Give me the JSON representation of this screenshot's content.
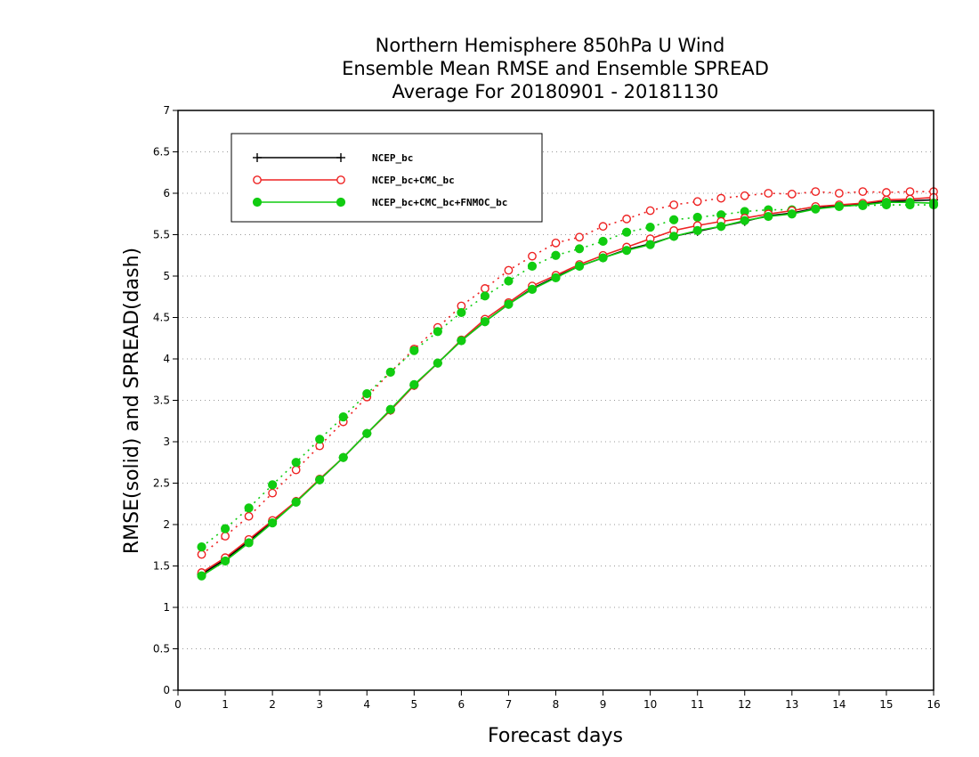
{
  "chart_data": {
    "type": "line",
    "title_lines": [
      "Northern Hemisphere 850hPa U Wind",
      "Ensemble Mean RMSE and Ensemble SPREAD",
      "Average For 20180901 - 20181130"
    ],
    "xlabel": "Forecast days",
    "ylabel": "RMSE(solid) and SPREAD(dash)",
    "xlim": [
      0,
      16
    ],
    "ylim": [
      0,
      7
    ],
    "x_ticks": [
      "0",
      "1",
      "2",
      "3",
      "4",
      "5",
      "6",
      "7",
      "8",
      "9",
      "10",
      "11",
      "12",
      "13",
      "14",
      "15",
      "16"
    ],
    "y_ticks": [
      "0",
      "0.5",
      "1",
      "1.5",
      "2",
      "2.5",
      "3",
      "3.5",
      "4",
      "4.5",
      "5",
      "5.5",
      "6",
      "6.5",
      "7"
    ],
    "grid": "dotted horizontal",
    "legend_position": "top-left",
    "x": [
      0.5,
      1,
      1.5,
      2,
      2.5,
      3,
      3.5,
      4,
      4.5,
      5,
      5.5,
      6,
      6.5,
      7,
      7.5,
      8,
      8.5,
      9,
      9.5,
      10,
      10.5,
      11,
      11.5,
      12,
      12.5,
      13,
      13.5,
      14,
      14.5,
      15,
      15.5,
      16
    ],
    "series": [
      {
        "name": "NCEP_bc",
        "color": "#000000",
        "marker": "plus",
        "rmse": [
          1.4,
          1.58,
          1.8,
          2.04,
          2.28,
          2.54,
          2.81,
          3.1,
          3.38,
          3.68,
          3.95,
          4.22,
          4.45,
          4.66,
          4.85,
          4.99,
          5.12,
          5.22,
          5.32,
          5.39,
          5.48,
          5.54,
          5.6,
          5.66,
          5.73,
          5.76,
          5.82,
          5.85,
          5.87,
          5.9,
          5.91,
          5.92
        ]
      },
      {
        "name": "NCEP_bc+CMC_bc",
        "color": "#ee2222",
        "marker": "open-circle",
        "rmse": [
          1.42,
          1.6,
          1.82,
          2.05,
          2.28,
          2.55,
          2.81,
          3.1,
          3.38,
          3.68,
          3.95,
          4.23,
          4.48,
          4.68,
          4.88,
          5.01,
          5.14,
          5.25,
          5.35,
          5.45,
          5.55,
          5.61,
          5.66,
          5.7,
          5.75,
          5.79,
          5.84,
          5.86,
          5.88,
          5.92,
          5.93,
          5.95
        ],
        "spread": [
          1.64,
          1.86,
          2.1,
          2.38,
          2.66,
          2.95,
          3.24,
          3.54,
          3.84,
          4.12,
          4.38,
          4.64,
          4.85,
          5.07,
          5.24,
          5.4,
          5.47,
          5.6,
          5.69,
          5.79,
          5.86,
          5.9,
          5.94,
          5.97,
          6.0,
          5.99,
          6.02,
          6.0,
          6.02,
          6.01,
          6.02,
          6.02
        ]
      },
      {
        "name": "NCEP_bc+CMC_bc+FNMOC_bc",
        "color": "#11cc11",
        "marker": "filled-circle",
        "rmse": [
          1.38,
          1.56,
          1.78,
          2.02,
          2.27,
          2.54,
          2.81,
          3.1,
          3.39,
          3.69,
          3.95,
          4.22,
          4.45,
          4.66,
          4.84,
          4.98,
          5.12,
          5.22,
          5.31,
          5.38,
          5.48,
          5.55,
          5.6,
          5.67,
          5.72,
          5.75,
          5.81,
          5.84,
          5.86,
          5.89,
          5.89,
          5.88
        ],
        "spread": [
          1.73,
          1.95,
          2.2,
          2.48,
          2.75,
          3.03,
          3.3,
          3.58,
          3.84,
          4.1,
          4.33,
          4.56,
          4.76,
          4.94,
          5.12,
          5.25,
          5.33,
          5.42,
          5.53,
          5.59,
          5.68,
          5.71,
          5.74,
          5.78,
          5.8,
          5.8,
          5.83,
          5.85,
          5.85,
          5.86,
          5.86,
          5.86
        ]
      }
    ]
  }
}
